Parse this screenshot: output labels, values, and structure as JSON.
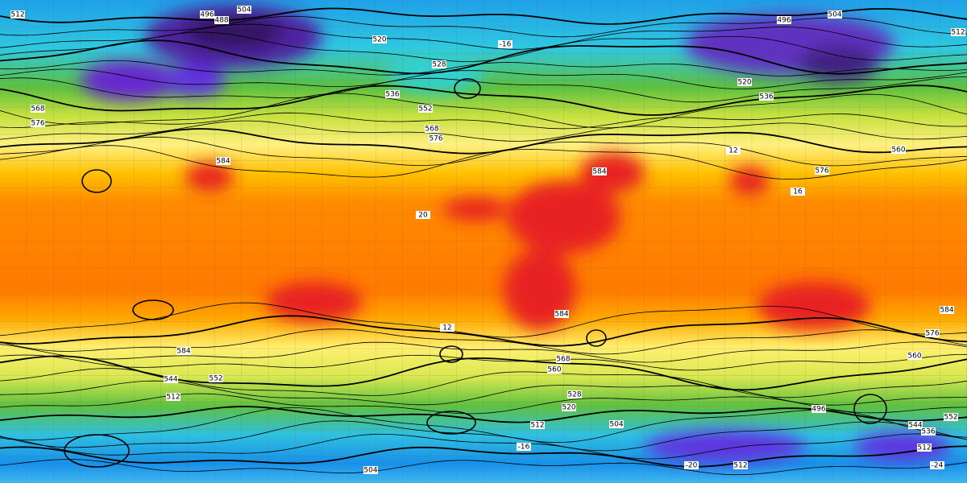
{
  "map": {
    "labels": [
      512,
      496,
      488,
      504,
      520,
      528,
      536,
      552,
      568,
      576,
      584,
      568,
      576,
      496,
      504,
      512,
      520,
      536,
      560,
      576,
      584,
      584,
      584,
      576,
      560,
      584,
      552,
      544,
      512,
      560,
      568,
      528,
      520,
      512,
      504,
      496,
      552,
      544,
      536,
      512,
      504,
      512,
      -16,
      -20,
      -24,
      12,
      16,
      20,
      12,
      -16
    ]
  }
}
